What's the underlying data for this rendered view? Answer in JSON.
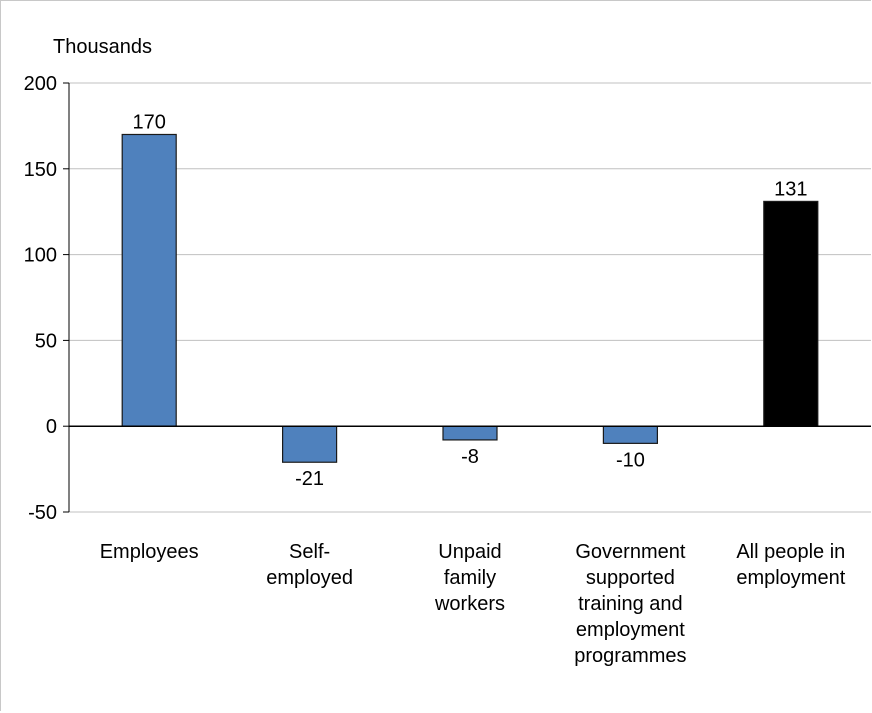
{
  "chart_data": {
    "type": "bar",
    "unit_label": "Thousands",
    "categories": [
      [
        "Employees"
      ],
      [
        "Self-",
        "employed"
      ],
      [
        "Unpaid",
        "family",
        "workers"
      ],
      [
        "Government",
        "supported",
        "training and",
        "employment",
        "programmes"
      ],
      [
        "All people in",
        "employment"
      ]
    ],
    "values": [
      170,
      -21,
      -8,
      -10,
      131
    ],
    "data_labels": [
      "170",
      "-21",
      "-8",
      "-10",
      "131"
    ],
    "bar_colors": [
      "#4f81bd",
      "#4f81bd",
      "#4f81bd",
      "#4f81bd",
      "#000000"
    ],
    "ylim": [
      -50,
      200
    ],
    "yticks": [
      200,
      150,
      100,
      50,
      0,
      -50
    ],
    "ytick_labels": [
      "200",
      "150",
      "100",
      "50",
      "0",
      "-50"
    ],
    "grid": true,
    "legend": "none"
  }
}
